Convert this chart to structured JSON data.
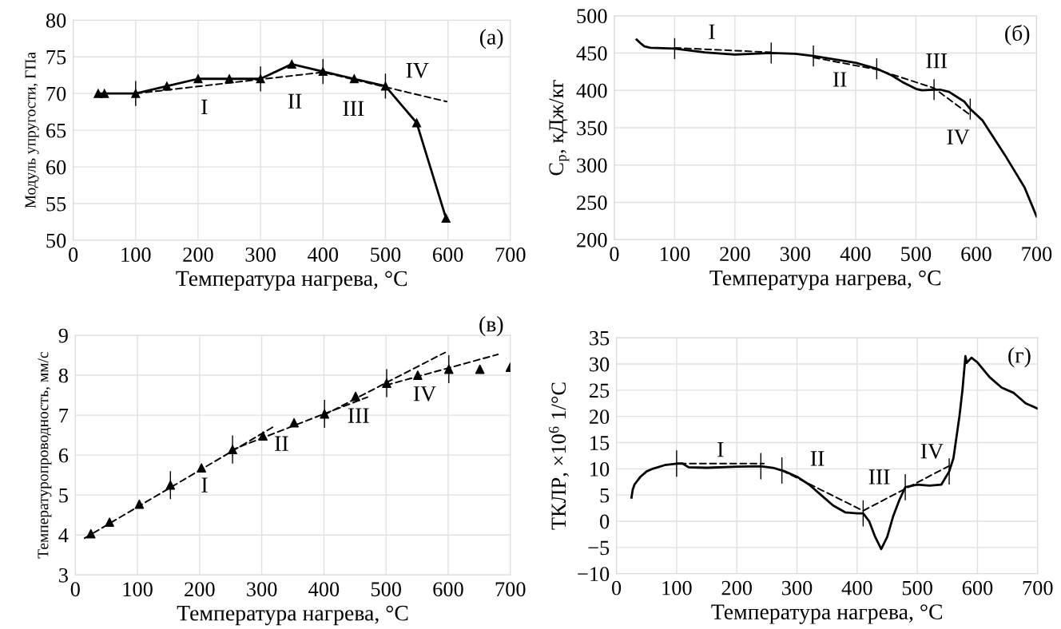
{
  "chart_data": [
    {
      "type": "line",
      "xlabel": "Температура нагрева, °C",
      "ylabel": "Модуль упругости, ГПа",
      "xlim": [
        0,
        700
      ],
      "ylim": [
        50,
        80
      ],
      "xticks": [
        0,
        100,
        200,
        300,
        400,
        500,
        600,
        700
      ],
      "yticks": [
        50,
        55,
        60,
        65,
        70,
        75,
        80
      ],
      "grid": true,
      "legend": false,
      "annotations": [
        "(a)",
        "I",
        "II",
        "III",
        "IV"
      ],
      "series": [
        {
          "marker": "triangle",
          "line_style": "solid",
          "color": "#000000",
          "x": [
            40,
            50,
            100,
            150,
            200,
            250,
            300,
            350,
            400,
            450,
            500,
            550,
            597
          ],
          "values": [
            70,
            70,
            70,
            71,
            72,
            72,
            72,
            74,
            73,
            72,
            71,
            66,
            53
          ],
          "errors": [
            null,
            null,
            1.7,
            null,
            null,
            null,
            1.7,
            null,
            1.7,
            null,
            1.7,
            null,
            null
          ]
        },
        {
          "type": "line",
          "marker": "none",
          "line_style": "dashed",
          "color": "#000000",
          "x": [
            100,
            400,
            598
          ],
          "values": [
            70,
            72.9,
            68.9
          ]
        }
      ]
    },
    {
      "type": "line",
      "xlabel": "Температура нагрева, °C",
      "ylabel": "C$_{p}$, кДж/кг",
      "xlim": [
        0,
        700
      ],
      "ylim": [
        200,
        500
      ],
      "xticks": [
        0,
        100,
        200,
        300,
        400,
        500,
        600,
        700
      ],
      "yticks": [
        200,
        250,
        300,
        350,
        400,
        450,
        500
      ],
      "grid": true,
      "legend": false,
      "annotations": [
        "(б)",
        "I",
        "II",
        "III",
        "IV"
      ],
      "series": [
        {
          "marker": "none",
          "line_style": "solid",
          "color": "#000000",
          "x": [
            37,
            45,
            50,
            60,
            100,
            150,
            200,
            260,
            300,
            330,
            400,
            435,
            460,
            480,
            500,
            510,
            530,
            540,
            555,
            580,
            590,
            610,
            650,
            680,
            700
          ],
          "values": [
            468,
            462,
            459,
            457,
            456,
            451,
            448,
            450,
            449,
            446,
            437,
            429,
            420,
            410,
            402,
            400,
            401,
            401,
            398,
            385,
            375,
            360,
            310,
            270,
            231
          ],
          "errors": [
            null,
            null,
            null,
            null,
            14,
            null,
            null,
            14,
            null,
            14,
            null,
            14,
            null,
            null,
            null,
            null,
            14,
            null,
            null,
            null,
            14,
            null,
            null,
            null,
            null
          ]
        },
        {
          "type": "line",
          "marker": "none",
          "line_style": "dashed",
          "color": "#000000",
          "x": [
            100,
            260
          ],
          "values": [
            457,
            451
          ]
        },
        {
          "type": "line",
          "marker": "none",
          "line_style": "dashed",
          "color": "#000000",
          "x": [
            330,
            435,
            530,
            590
          ],
          "values": [
            444,
            428,
            403,
            367
          ]
        }
      ]
    },
    {
      "type": "scatter",
      "xlabel": "Температура нагрева, °C",
      "ylabel": "Температуропроводность, мм/с",
      "xlim": [
        0,
        700
      ],
      "ylim": [
        3,
        9
      ],
      "xticks": [
        0,
        100,
        200,
        300,
        400,
        500,
        600,
        700
      ],
      "yticks": [
        3,
        4,
        5,
        6,
        7,
        8,
        9
      ],
      "grid": true,
      "legend": false,
      "annotations": [
        "(в)",
        "I",
        "II",
        "III",
        "IV"
      ],
      "series": [
        {
          "marker": "triangle",
          "color": "#000000",
          "x": [
            25,
            55,
            103,
            153,
            203,
            253,
            302,
            352,
            401,
            451,
            501,
            551,
            601,
            651,
            700
          ],
          "values": [
            4.03,
            4.32,
            4.77,
            5.25,
            5.68,
            6.14,
            6.48,
            6.81,
            7.03,
            7.47,
            7.8,
            8.0,
            8.15,
            8.15,
            8.2
          ],
          "errors": [
            null,
            null,
            null,
            0.35,
            null,
            0.35,
            null,
            null,
            0.35,
            null,
            0.35,
            null,
            0.35,
            null,
            null
          ]
        },
        {
          "type": "line",
          "marker": "none",
          "line_style": "dashed",
          "color": "#000000",
          "x": [
            15,
            320
          ],
          "values": [
            3.92,
            6.72
          ]
        },
        {
          "type": "line",
          "marker": "none",
          "line_style": "dashed",
          "color": "#000000",
          "x": [
            250,
            400,
            470
          ],
          "values": [
            6.12,
            7.03,
            7.45
          ]
        },
        {
          "type": "line",
          "marker": "none",
          "line_style": "dashed",
          "color": "#000000",
          "x": [
            400,
            500,
            595
          ],
          "values": [
            7.0,
            7.81,
            8.57
          ]
        },
        {
          "type": "line",
          "marker": "none",
          "line_style": "dashed",
          "color": "#000000",
          "x": [
            500,
            680
          ],
          "values": [
            7.75,
            8.52
          ]
        }
      ]
    },
    {
      "type": "line",
      "xlabel": "Температура нагрева, °C",
      "ylabel": "ТКЛР, ×10$^{6}$ 1/°C",
      "xlim": [
        0,
        700
      ],
      "ylim": [
        -10,
        35
      ],
      "xticks": [
        0,
        100,
        200,
        300,
        400,
        500,
        600,
        700
      ],
      "yticks": [
        {
          "value": -10,
          "label": "−10"
        },
        {
          "value": -5,
          "label": "−5"
        },
        0,
        5,
        10,
        15,
        20,
        25,
        30,
        35
      ],
      "grid": true,
      "legend": false,
      "annotations": [
        "(г)",
        "I",
        "II",
        "III",
        "IV"
      ],
      "series": [
        {
          "marker": "none",
          "line_style": "solid",
          "color": "#000000",
          "x": [
            25,
            27,
            30,
            40,
            50,
            60,
            80,
            100,
            110,
            120,
            150,
            200,
            240,
            260,
            275,
            280,
            300,
            320,
            340,
            360,
            380,
            400,
            410,
            420,
            430,
            440,
            450,
            460,
            470,
            480,
            500,
            520,
            540,
            553,
            560,
            570,
            575,
            580,
            582,
            590,
            600,
            620,
            640,
            660,
            680,
            700
          ],
          "values": [
            4.5,
            6,
            7,
            8.5,
            9.5,
            10,
            10.7,
            11,
            11,
            10.3,
            10.2,
            10.4,
            10.5,
            10.2,
            9.7,
            9.5,
            8.5,
            7,
            5,
            3,
            1.7,
            1.5,
            1.5,
            0,
            -3,
            -5.3,
            -3,
            1,
            4,
            6.5,
            7,
            6.8,
            7,
            9.5,
            12,
            20,
            25,
            31.5,
            30.2,
            31.2,
            30.3,
            27.5,
            25.5,
            24.5,
            22.5,
            21.5
          ],
          "errors": [
            null,
            null,
            null,
            null,
            null,
            null,
            null,
            2.5,
            null,
            null,
            null,
            null,
            2.5,
            null,
            2.5,
            null,
            null,
            null,
            null,
            null,
            null,
            null,
            2.5,
            null,
            null,
            null,
            null,
            null,
            null,
            2.5,
            null,
            null,
            null,
            2.5,
            null,
            null,
            null,
            null,
            null,
            null,
            null,
            null,
            null,
            null,
            null,
            null
          ]
        },
        {
          "type": "line",
          "marker": "none",
          "line_style": "dashed",
          "color": "#000000",
          "x": [
            105,
            245
          ],
          "values": [
            11,
            11
          ]
        },
        {
          "type": "line",
          "marker": "none",
          "line_style": "dashed",
          "color": "#000000",
          "x": [
            275,
            410,
            552
          ],
          "values": [
            9.7,
            2,
            10.5
          ]
        }
      ]
    }
  ]
}
